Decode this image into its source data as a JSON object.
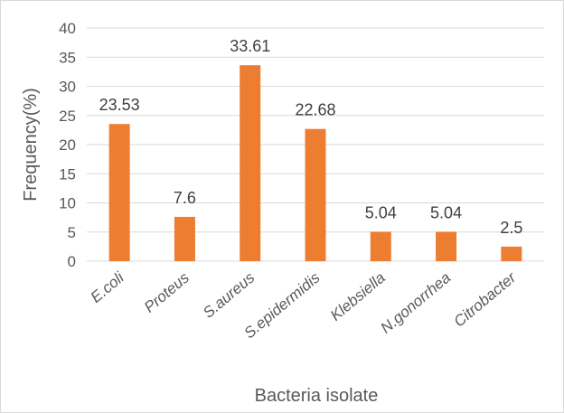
{
  "chart_data": {
    "type": "bar",
    "title": "",
    "xlabel": "Bacteria isolate",
    "ylabel": "Frequency(%)",
    "categories": [
      "E.coli",
      "Proteus",
      "S.aureus",
      "S.epidermidis",
      "Klebsiella",
      "N.gonorrhea",
      "Citrobacter"
    ],
    "values": [
      23.53,
      7.6,
      33.61,
      22.68,
      5.04,
      5.04,
      2.5
    ],
    "data_labels": [
      "23.53",
      "7.6",
      "33.61",
      "22.68",
      "5.04",
      "5.04",
      "2.5"
    ],
    "ylim": [
      0,
      40
    ],
    "yticks": [
      "0",
      "5",
      "10",
      "15",
      "20",
      "25",
      "30",
      "35",
      "40"
    ],
    "grid": true,
    "legend": "none",
    "colors": {
      "bar": "#ED7D31",
      "grid": "#D9D9D9",
      "text": "#595959"
    }
  }
}
